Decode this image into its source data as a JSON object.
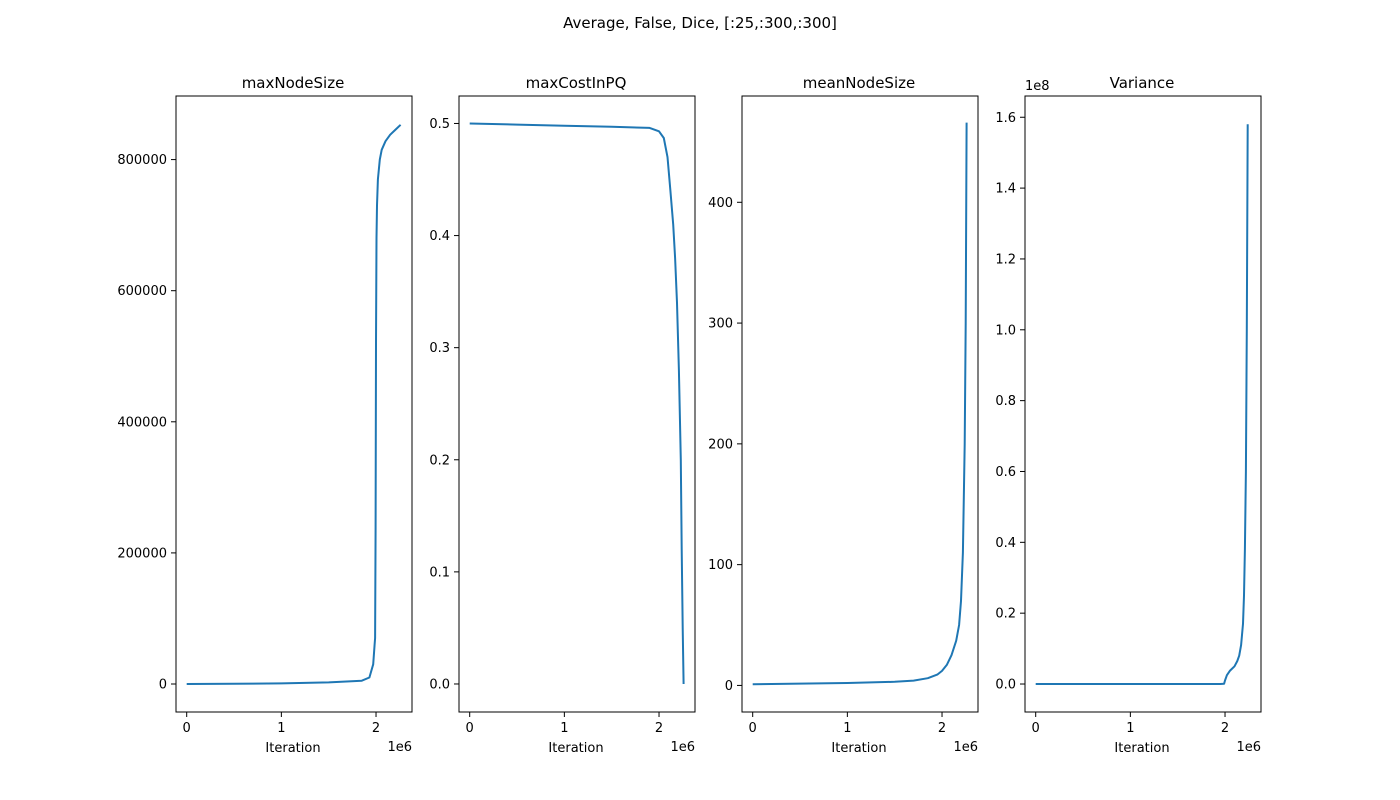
{
  "figure": {
    "suptitle": "Average, False, Dice, [:25,:300,:300]",
    "line_color": "#1f77b4"
  },
  "chart_data": [
    {
      "type": "line",
      "title": "maxNodeSize",
      "xlabel": "Iteration",
      "ylabel": "",
      "x_offset_label": "1e6",
      "y_offset_label": "",
      "xlim": [
        -0.113,
        2.38
      ],
      "ylim": [
        -42700,
        897000
      ],
      "x_ticks": [
        0,
        1,
        2
      ],
      "x_tick_labels": [
        "0",
        "1",
        "2"
      ],
      "y_ticks": [
        0,
        200000,
        400000,
        600000,
        800000
      ],
      "y_tick_labels": [
        "0",
        "200000",
        "400000",
        "600000",
        "800000"
      ],
      "x": [
        0,
        0.5,
        1.0,
        1.5,
        1.85,
        1.93,
        1.97,
        1.985,
        1.99,
        1.995,
        2.0,
        2.005,
        2.01,
        2.02,
        2.04,
        2.06,
        2.1,
        2.15,
        2.2,
        2.26
      ],
      "y": [
        0,
        300,
        1000,
        2500,
        5000,
        10000,
        30000,
        60000,
        70000,
        240000,
        520000,
        680000,
        730000,
        770000,
        800000,
        815000,
        828000,
        838000,
        845000,
        853000
      ]
    },
    {
      "type": "line",
      "title": "maxCostInPQ",
      "xlabel": "Iteration",
      "ylabel": "",
      "x_offset_label": "1e6",
      "y_offset_label": "",
      "xlim": [
        -0.113,
        2.38
      ],
      "ylim": [
        -0.025,
        0.5245
      ],
      "x_ticks": [
        0,
        1,
        2
      ],
      "x_tick_labels": [
        "0",
        "1",
        "2"
      ],
      "y_ticks": [
        0.0,
        0.1,
        0.2,
        0.3,
        0.4,
        0.5
      ],
      "y_tick_labels": [
        "0.0",
        "0.1",
        "0.2",
        "0.3",
        "0.4",
        "0.5"
      ],
      "x": [
        0,
        0.5,
        1.0,
        1.5,
        1.9,
        2.0,
        2.05,
        2.09,
        2.12,
        2.15,
        2.17,
        2.19,
        2.21,
        2.23,
        2.24,
        2.25,
        2.26
      ],
      "y": [
        0.5,
        0.499,
        0.498,
        0.497,
        0.496,
        0.493,
        0.487,
        0.47,
        0.44,
        0.41,
        0.38,
        0.34,
        0.28,
        0.2,
        0.12,
        0.05,
        0.0
      ]
    },
    {
      "type": "line",
      "title": "meanNodeSize",
      "xlabel": "Iteration",
      "ylabel": "",
      "x_offset_label": "1e6",
      "y_offset_label": "",
      "xlim": [
        -0.113,
        2.38
      ],
      "ylim": [
        -22,
        488
      ],
      "x_ticks": [
        0,
        1,
        2
      ],
      "x_tick_labels": [
        "0",
        "1",
        "2"
      ],
      "y_ticks": [
        0,
        100,
        200,
        300,
        400
      ],
      "y_tick_labels": [
        "0",
        "100",
        "200",
        "300",
        "400"
      ],
      "x": [
        0,
        0.5,
        1.0,
        1.5,
        1.7,
        1.85,
        1.95,
        2.0,
        2.05,
        2.1,
        2.15,
        2.18,
        2.2,
        2.22,
        2.24,
        2.25,
        2.26
      ],
      "y": [
        1,
        1.5,
        2,
        3,
        4,
        6,
        9,
        12,
        17,
        25,
        37,
        50,
        70,
        110,
        200,
        300,
        466
      ]
    },
    {
      "type": "line",
      "title": "Variance",
      "xlabel": "Iteration",
      "ylabel": "",
      "x_offset_label": "1e6",
      "y_offset_label": "1e8",
      "xlim": [
        -0.113,
        2.38
      ],
      "ylim": [
        -0.079,
        1.66
      ],
      "x_ticks": [
        0,
        1,
        2
      ],
      "x_tick_labels": [
        "0",
        "1",
        "2"
      ],
      "y_ticks": [
        0.0,
        0.2,
        0.4,
        0.6,
        0.8,
        1.0,
        1.2,
        1.4,
        1.6
      ],
      "y_tick_labels": [
        "0.0",
        "0.2",
        "0.4",
        "0.6",
        "0.8",
        "1.0",
        "1.2",
        "1.4",
        "1.6"
      ],
      "x": [
        0,
        0.5,
        1.0,
        1.5,
        1.95,
        1.99,
        2.0,
        2.02,
        2.05,
        2.1,
        2.13,
        2.15,
        2.17,
        2.19,
        2.2,
        2.21,
        2.22,
        2.23,
        2.24
      ],
      "y": [
        0,
        0,
        0,
        0,
        0,
        0.001,
        0.01,
        0.025,
        0.037,
        0.05,
        0.065,
        0.08,
        0.11,
        0.17,
        0.25,
        0.38,
        0.6,
        1.0,
        1.58
      ]
    }
  ]
}
